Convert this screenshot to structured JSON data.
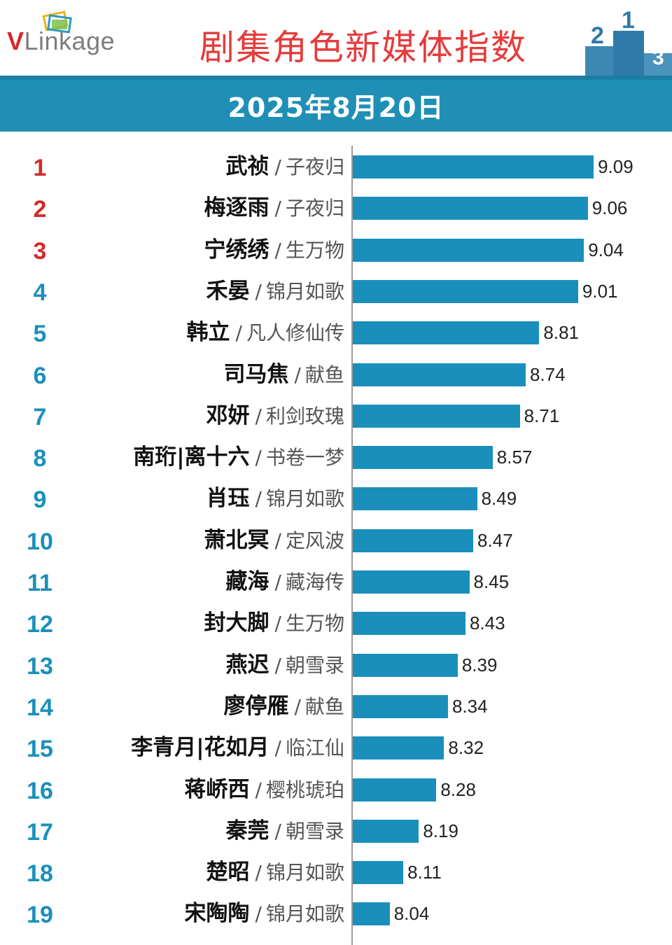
{
  "header": {
    "logo": {
      "brand_v": "V",
      "brand_rest": "Linkage",
      "name": "VLinkage"
    },
    "title": "剧集角色新媒体指数",
    "podium_numbers": [
      "2",
      "1",
      "3"
    ]
  },
  "date": "2025年8月20日",
  "colors": {
    "bar": "#1a8fbb",
    "band": "#1f8fb6",
    "title": "#e53c3c",
    "rank_top3": "#d42a2a",
    "rank_other": "#1a8fbb"
  },
  "chart_data": {
    "type": "bar",
    "orientation": "horizontal",
    "title": "剧集角色新媒体指数",
    "subtitle": "2025年8月20日",
    "xlim": [
      7.85,
      9.45
    ],
    "items": [
      {
        "rank": "1",
        "name": "武祯",
        "drama": "子夜归",
        "value": 9.09
      },
      {
        "rank": "2",
        "name": "梅逐雨",
        "drama": "子夜归",
        "value": 9.06
      },
      {
        "rank": "3",
        "name": "宁绣绣",
        "drama": "生万物",
        "value": 9.04
      },
      {
        "rank": "4",
        "name": "禾晏",
        "drama": "锦月如歌",
        "value": 9.01
      },
      {
        "rank": "5",
        "name": "韩立",
        "drama": "凡人修仙传",
        "value": 8.81
      },
      {
        "rank": "6",
        "name": "司马焦",
        "drama": "献鱼",
        "value": 8.74
      },
      {
        "rank": "7",
        "name": "邓妍",
        "drama": "利剑玫瑰",
        "value": 8.71
      },
      {
        "rank": "8",
        "name": "南珩|离十六",
        "drama": "书卷一梦",
        "value": 8.57
      },
      {
        "rank": "9",
        "name": "肖珏",
        "drama": "锦月如歌",
        "value": 8.49
      },
      {
        "rank": "10",
        "name": "萧北冥",
        "drama": "定风波",
        "value": 8.47
      },
      {
        "rank": "11",
        "name": "藏海",
        "drama": "藏海传",
        "value": 8.45
      },
      {
        "rank": "12",
        "name": "封大脚",
        "drama": "生万物",
        "value": 8.43
      },
      {
        "rank": "13",
        "name": "燕迟",
        "drama": "朝雪录",
        "value": 8.39
      },
      {
        "rank": "14",
        "name": "廖停雁",
        "drama": "献鱼",
        "value": 8.34
      },
      {
        "rank": "15",
        "name": "李青月|花如月",
        "drama": "临江仙",
        "value": 8.32
      },
      {
        "rank": "16",
        "name": "蒋峤西",
        "drama": "樱桃琥珀",
        "value": 8.28
      },
      {
        "rank": "17",
        "name": "秦莞",
        "drama": "朝雪录",
        "value": 8.19
      },
      {
        "rank": "18",
        "name": "楚昭",
        "drama": "锦月如歌",
        "value": 8.11
      },
      {
        "rank": "19",
        "name": "宋陶陶",
        "drama": "锦月如歌",
        "value": 8.04
      }
    ]
  }
}
